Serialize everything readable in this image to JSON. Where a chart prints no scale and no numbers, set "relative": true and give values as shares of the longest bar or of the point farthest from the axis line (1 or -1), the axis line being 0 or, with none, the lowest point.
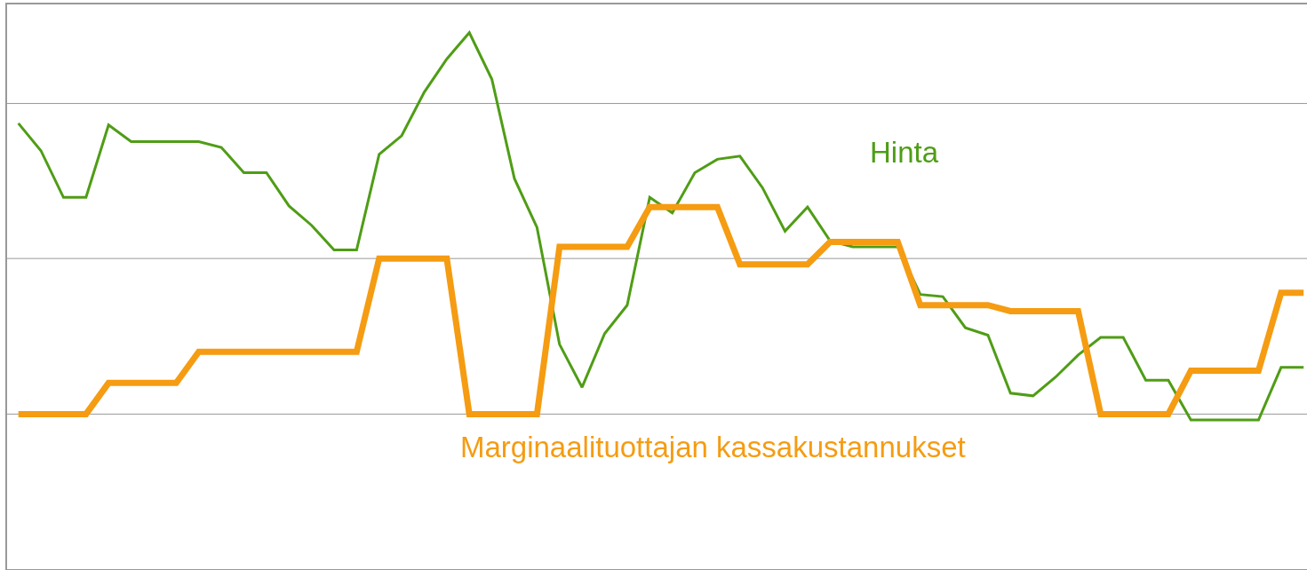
{
  "chart_data": {
    "type": "line",
    "relative": true,
    "categories": [
      null,
      null,
      null,
      null,
      null,
      null,
      null,
      null,
      null,
      null,
      null,
      null,
      null,
      null,
      null,
      null,
      null,
      null,
      null,
      null,
      null,
      null,
      null,
      null,
      null,
      null,
      null,
      null,
      null,
      null,
      null,
      null,
      null,
      null,
      null,
      null,
      null,
      null,
      null,
      null,
      null,
      null,
      null,
      null,
      null,
      null,
      null,
      null,
      null,
      null,
      null,
      null,
      null,
      null,
      null,
      null,
      null,
      null
    ],
    "legend": false,
    "ref_lines": [
      {
        "axis": "y",
        "value": 0.289,
        "color": "#999999"
      },
      {
        "axis": "y",
        "value": 0.579,
        "color": "#999999"
      },
      {
        "axis": "y",
        "value": 0.868,
        "color": "#999999"
      }
    ],
    "series": [
      {
        "name": "Hinta",
        "color": "#4f9d16",
        "values": [
          0.831,
          0.78,
          0.693,
          0.693,
          0.828,
          0.797,
          0.797,
          0.797,
          0.797,
          0.786,
          0.739,
          0.739,
          0.677,
          0.641,
          0.595,
          0.595,
          0.773,
          0.808,
          0.889,
          0.951,
          1,
          0.913,
          0.728,
          0.637,
          0.419,
          0.339,
          0.439,
          0.492,
          0.693,
          0.664,
          0.739,
          0.764,
          0.77,
          0.711,
          0.63,
          0.675,
          0.612,
          0.601,
          0.601,
          0.601,
          0.512,
          0.508,
          0.45,
          0.436,
          0.328,
          0.323,
          0.358,
          0.399,
          0.432,
          0.432,
          0.352,
          0.352,
          0.278,
          0.278,
          0.278,
          0.278,
          0.376,
          0.376
        ]
      },
      {
        "name": "Marginaalituottajan kassakustannukset",
        "color": "#f59c12",
        "values": [
          0.289,
          0.289,
          0.289,
          0.289,
          0.347,
          0.347,
          0.347,
          0.347,
          0.405,
          0.405,
          0.405,
          0.405,
          0.405,
          0.405,
          0.405,
          0.405,
          0.579,
          0.579,
          0.579,
          0.579,
          0.289,
          0.289,
          0.289,
          0.289,
          0.601,
          0.601,
          0.601,
          0.601,
          0.675,
          0.675,
          0.675,
          0.675,
          0.568,
          0.568,
          0.568,
          0.568,
          0.61,
          0.61,
          0.61,
          0.61,
          0.492,
          0.492,
          0.492,
          0.492,
          0.481,
          0.481,
          0.481,
          0.481,
          0.289,
          0.289,
          0.289,
          0.289,
          0.37,
          0.37,
          0.37,
          0.37,
          0.515,
          0.515
        ]
      }
    ]
  }
}
